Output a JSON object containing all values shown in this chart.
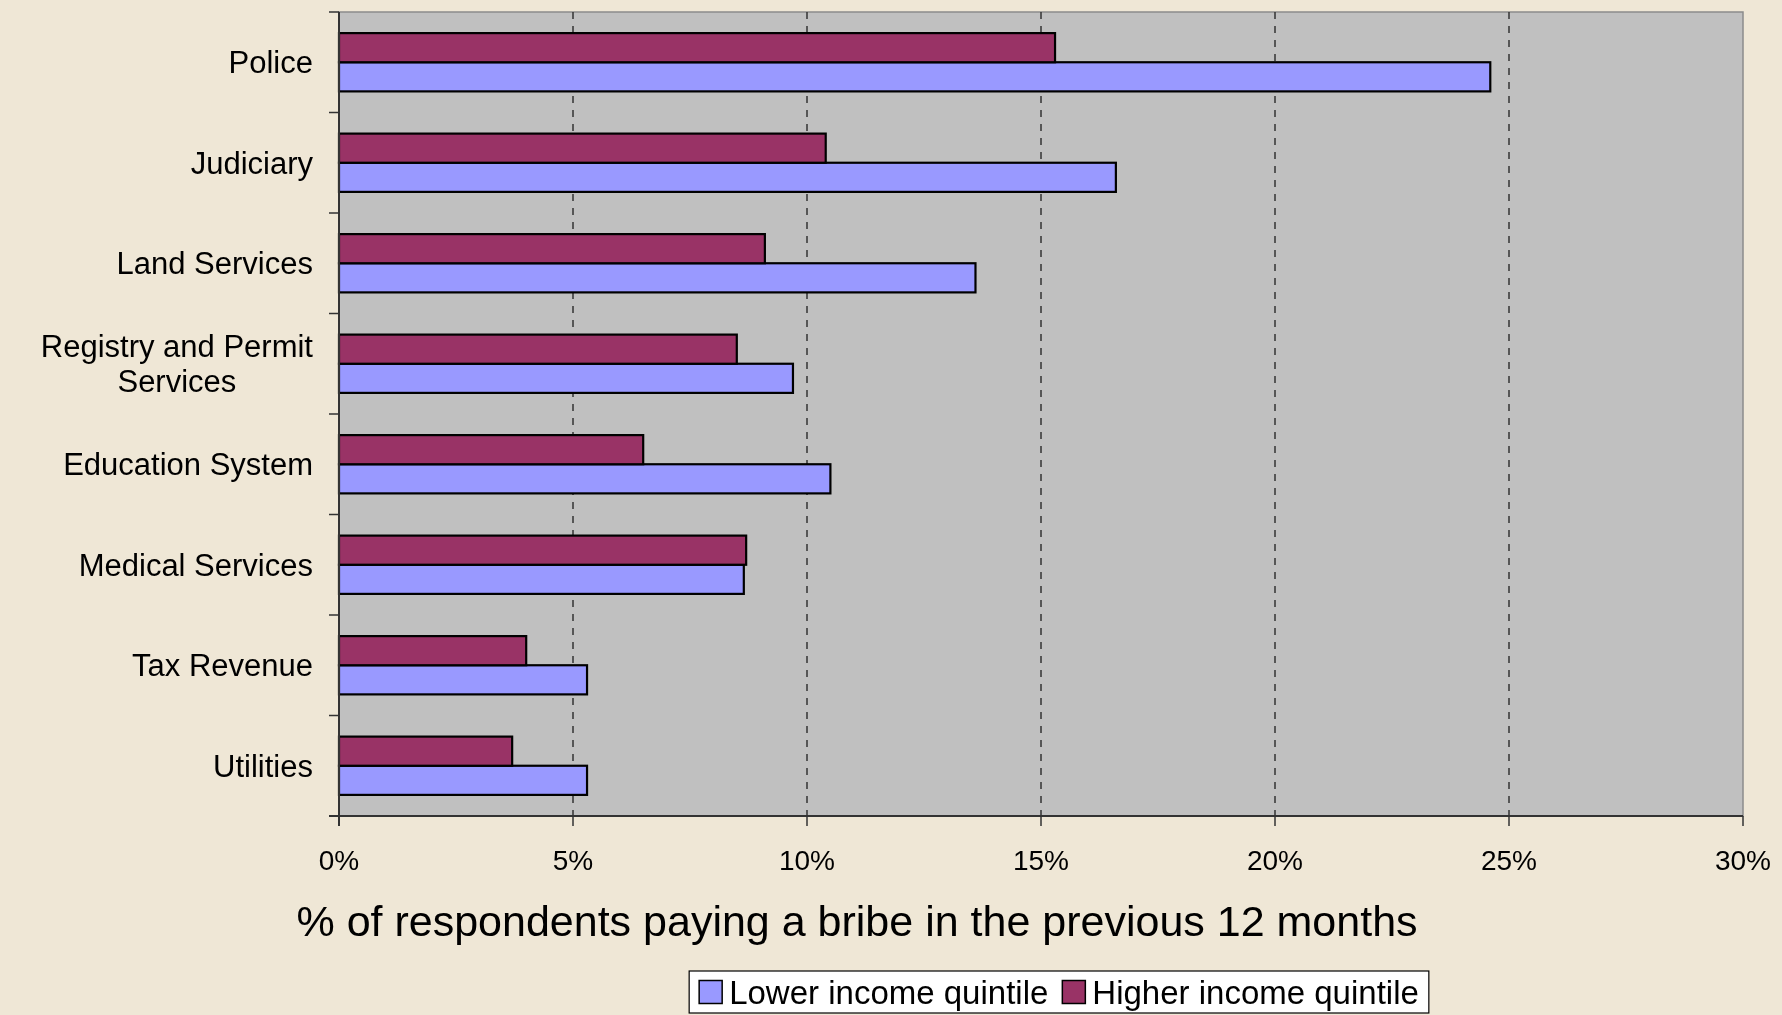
{
  "chart_data": {
    "type": "bar",
    "orientation": "horizontal",
    "categories": [
      "Police",
      "Judiciary",
      "Land Services",
      "Registry and Permit Services",
      "Education System",
      "Medical Services",
      "Tax Revenue",
      "Utilities"
    ],
    "series": [
      {
        "name": "Lower income quintile",
        "color": "#9999ff",
        "values": [
          24.6,
          16.6,
          13.6,
          9.7,
          10.5,
          8.65,
          5.3,
          5.3
        ]
      },
      {
        "name": "Higher income quintile",
        "color": "#993366",
        "values": [
          15.3,
          10.4,
          9.1,
          8.5,
          6.5,
          8.7,
          4.0,
          3.7
        ]
      }
    ],
    "xlabel": "% of respondents paying a bribe in the previous 12 months",
    "xlim": [
      0,
      30
    ],
    "xticks": [
      {
        "value": 0,
        "label": "0%"
      },
      {
        "value": 5,
        "label": "5%"
      },
      {
        "value": 10,
        "label": "10%"
      },
      {
        "value": 15,
        "label": "15%"
      },
      {
        "value": 20,
        "label": "20%"
      },
      {
        "value": 25,
        "label": "25%"
      },
      {
        "value": 30,
        "label": "30%"
      }
    ],
    "grid": "x",
    "legend": "bottom"
  }
}
